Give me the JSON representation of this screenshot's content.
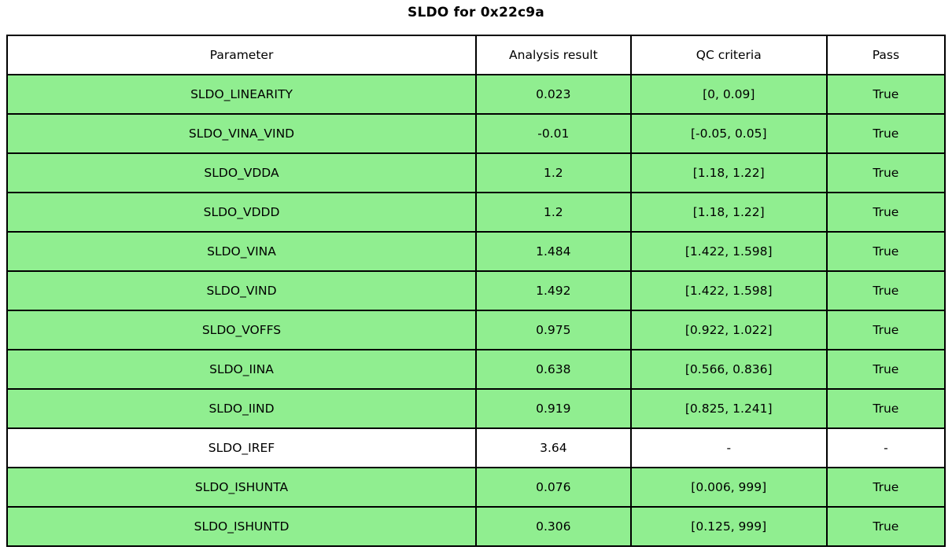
{
  "title": "SLDO for 0x22c9a",
  "colors": {
    "pass_green": "#90EE90",
    "header_bg": "#FFFFFF",
    "border": "#000000",
    "text": "#000000"
  },
  "chart_data": {
    "type": "table",
    "title": "SLDO for 0x22c9a",
    "columns": [
      "Parameter",
      "Analysis result",
      "QC criteria",
      "Pass"
    ],
    "rows": [
      {
        "parameter": "SLDO_LINEARITY",
        "result": "0.023",
        "criteria": "[0, 0.09]",
        "pass": "True",
        "highlight": true
      },
      {
        "parameter": "SLDO_VINA_VIND",
        "result": "-0.01",
        "criteria": "[-0.05, 0.05]",
        "pass": "True",
        "highlight": true
      },
      {
        "parameter": "SLDO_VDDA",
        "result": "1.2",
        "criteria": "[1.18, 1.22]",
        "pass": "True",
        "highlight": true
      },
      {
        "parameter": "SLDO_VDDD",
        "result": "1.2",
        "criteria": "[1.18, 1.22]",
        "pass": "True",
        "highlight": true
      },
      {
        "parameter": "SLDO_VINA",
        "result": "1.484",
        "criteria": "[1.422, 1.598]",
        "pass": "True",
        "highlight": true
      },
      {
        "parameter": "SLDO_VIND",
        "result": "1.492",
        "criteria": "[1.422, 1.598]",
        "pass": "True",
        "highlight": true
      },
      {
        "parameter": "SLDO_VOFFS",
        "result": "0.975",
        "criteria": "[0.922, 1.022]",
        "pass": "True",
        "highlight": true
      },
      {
        "parameter": "SLDO_IINA",
        "result": "0.638",
        "criteria": "[0.566, 0.836]",
        "pass": "True",
        "highlight": true
      },
      {
        "parameter": "SLDO_IIND",
        "result": "0.919",
        "criteria": "[0.825, 1.241]",
        "pass": "True",
        "highlight": true
      },
      {
        "parameter": "SLDO_IREF",
        "result": "3.64",
        "criteria": "-",
        "pass": "-",
        "highlight": false
      },
      {
        "parameter": "SLDO_ISHUNTA",
        "result": "0.076",
        "criteria": "[0.006, 999]",
        "pass": "True",
        "highlight": true
      },
      {
        "parameter": "SLDO_ISHUNTD",
        "result": "0.306",
        "criteria": "[0.125, 999]",
        "pass": "True",
        "highlight": true
      }
    ]
  }
}
